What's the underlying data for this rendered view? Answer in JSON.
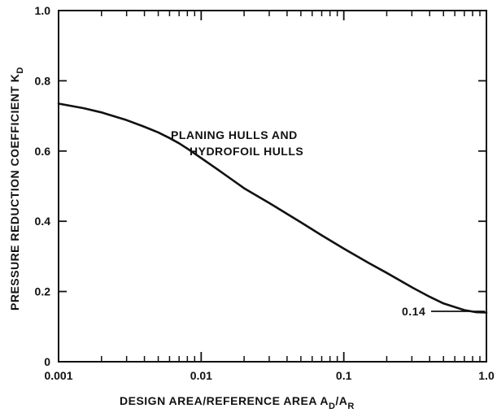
{
  "chart_data": {
    "type": "line",
    "x_scale": "log",
    "y_scale": "linear",
    "xlim": [
      0.001,
      1.0
    ],
    "ylim": [
      0,
      1.0
    ],
    "x_ticks": [
      0.001,
      0.01,
      0.1,
      1.0
    ],
    "x_tick_labels": [
      "0.001",
      "0.01",
      "0.1",
      "1.0"
    ],
    "y_ticks": [
      0,
      0.2,
      0.4,
      0.6,
      0.8,
      1.0
    ],
    "y_tick_labels": [
      "0",
      "0.2",
      "0.4",
      "0.6",
      "0.8",
      "1.0"
    ],
    "xlabel": "DESIGN AREA/REFERENCE AREA A",
    "xlabel_sub1": "D",
    "xlabel_mid": "/A",
    "xlabel_sub2": "R",
    "ylabel": "PRESSURE REDUCTION COEFFICIENT K",
    "ylabel_sub": "D",
    "grid": false,
    "series": [
      {
        "name": "PLANING HULLS AND HYDROFOIL HULLS",
        "x": [
          0.001,
          0.0015,
          0.002,
          0.003,
          0.004,
          0.005,
          0.006,
          0.007,
          0.008,
          0.01,
          0.013,
          0.016,
          0.02,
          0.03,
          0.04,
          0.05,
          0.07,
          0.1,
          0.15,
          0.2,
          0.3,
          0.4,
          0.5,
          0.7,
          0.85,
          1.0
        ],
        "y": [
          0.735,
          0.722,
          0.71,
          0.688,
          0.669,
          0.653,
          0.637,
          0.622,
          0.607,
          0.58,
          0.548,
          0.522,
          0.494,
          0.452,
          0.421,
          0.397,
          0.36,
          0.322,
          0.281,
          0.253,
          0.212,
          0.185,
          0.166,
          0.147,
          0.141,
          0.14
        ]
      }
    ],
    "annotations": {
      "series_label_line1": "PLANING HULLS AND",
      "series_label_line2": "HYDROFOIL HULLS",
      "endpoint_value": "0.14",
      "endpoint_x": 1.0,
      "endpoint_y": 0.14
    }
  }
}
